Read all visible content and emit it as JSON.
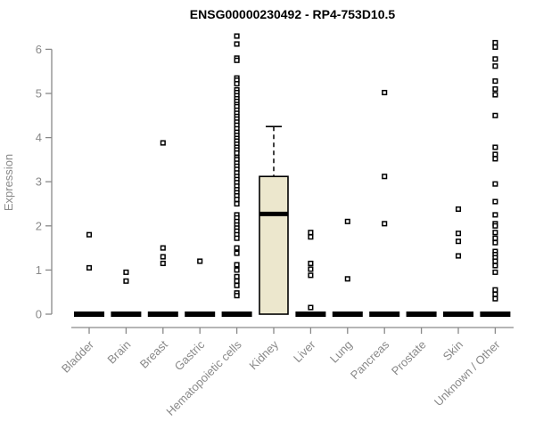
{
  "chart_data": {
    "type": "boxplot",
    "title": "ENSG00000230492 - RP4-753D10.5",
    "xlabel": "",
    "ylabel": "Expression",
    "ylim": [
      0,
      6.45
    ],
    "yticks": [
      0,
      1,
      2,
      3,
      4,
      5,
      6
    ],
    "grid": false,
    "legend": "none",
    "categories": [
      "Bladder",
      "Brain",
      "Breast",
      "Gastric",
      "Hematopoietic cells",
      "Kidney",
      "Liver",
      "Lung",
      "Pancreas",
      "Prostate",
      "Skin",
      "Unknown / Other"
    ],
    "boxes": [
      {
        "category": "Bladder",
        "q1": 0,
        "median": 0,
        "q3": 0,
        "whisker_low": 0,
        "whisker_high": 0,
        "outliers": [
          1.8,
          1.05
        ]
      },
      {
        "category": "Brain",
        "q1": 0,
        "median": 0,
        "q3": 0,
        "whisker_low": 0,
        "whisker_high": 0,
        "outliers": [
          0.95,
          0.75
        ]
      },
      {
        "category": "Breast",
        "q1": 0,
        "median": 0,
        "q3": 0,
        "whisker_low": 0,
        "whisker_high": 0,
        "outliers": [
          3.88,
          1.5,
          1.3,
          1.15
        ]
      },
      {
        "category": "Gastric",
        "q1": 0,
        "median": 0,
        "q3": 0,
        "whisker_low": 0,
        "whisker_high": 0,
        "outliers": [
          1.2
        ]
      },
      {
        "category": "Hematopoietic cells",
        "q1": 0,
        "median": 0,
        "q3": 0,
        "whisker_low": 0,
        "whisker_high": 0,
        "outliers": [
          6.3,
          6.12,
          5.8,
          5.75,
          5.35,
          5.3,
          5.22,
          5.08,
          5.02,
          4.95,
          4.88,
          4.82,
          4.75,
          4.7,
          4.62,
          4.55,
          4.48,
          4.42,
          4.35,
          4.28,
          4.2,
          4.12,
          4.05,
          3.98,
          3.92,
          3.85,
          3.78,
          3.72,
          3.65,
          3.55,
          3.5,
          3.42,
          3.35,
          3.28,
          3.2,
          3.12,
          3.05,
          2.98,
          2.9,
          2.82,
          2.75,
          2.68,
          2.6,
          2.5,
          2.25,
          2.18,
          2.1,
          2.02,
          1.95,
          1.88,
          1.8,
          1.72,
          1.5,
          1.38,
          1.12,
          1.0,
          0.85,
          0.75,
          0.65,
          0.48,
          0.42
        ]
      },
      {
        "category": "Kidney",
        "q1": 0,
        "median": 2.27,
        "q3": 3.12,
        "whisker_low": 0,
        "whisker_high": 4.25,
        "outliers": []
      },
      {
        "category": "Liver",
        "q1": 0,
        "median": 0,
        "q3": 0,
        "whisker_low": 0,
        "whisker_high": 0,
        "outliers": [
          1.85,
          1.75,
          1.15,
          1.02,
          0.88,
          0.15
        ]
      },
      {
        "category": "Lung",
        "q1": 0,
        "median": 0,
        "q3": 0,
        "whisker_low": 0,
        "whisker_high": 0,
        "outliers": [
          2.1,
          0.8
        ]
      },
      {
        "category": "Pancreas",
        "q1": 0,
        "median": 0,
        "q3": 0,
        "whisker_low": 0,
        "whisker_high": 0,
        "outliers": [
          5.02,
          3.12,
          2.05
        ]
      },
      {
        "category": "Prostate",
        "q1": 0,
        "median": 0,
        "q3": 0,
        "whisker_low": 0,
        "whisker_high": 0,
        "outliers": []
      },
      {
        "category": "Skin",
        "q1": 0,
        "median": 0,
        "q3": 0,
        "whisker_low": 0,
        "whisker_high": 0,
        "outliers": [
          2.38,
          1.83,
          1.65,
          1.32
        ]
      },
      {
        "category": "Unknown / Other",
        "q1": 0,
        "median": 0,
        "q3": 0,
        "whisker_low": 0,
        "whisker_high": 0,
        "outliers": [
          6.15,
          6.05,
          5.78,
          5.62,
          5.28,
          5.1,
          4.97,
          4.5,
          3.78,
          3.62,
          3.52,
          2.95,
          2.55,
          2.25,
          2.05,
          2.0,
          1.85,
          1.72,
          1.62,
          1.42,
          1.35,
          1.28,
          1.2,
          1.1,
          0.95,
          0.55,
          0.45,
          0.35
        ]
      }
    ],
    "colors": {
      "box_fill": "#ECE7CD",
      "box_stroke": "#000000",
      "median": "#000000",
      "point_stroke": "#000000",
      "point_fill": "#ffffff",
      "axis": "#898989",
      "tick_text": "#898989",
      "title": "#000000",
      "background": "#ffffff"
    }
  }
}
